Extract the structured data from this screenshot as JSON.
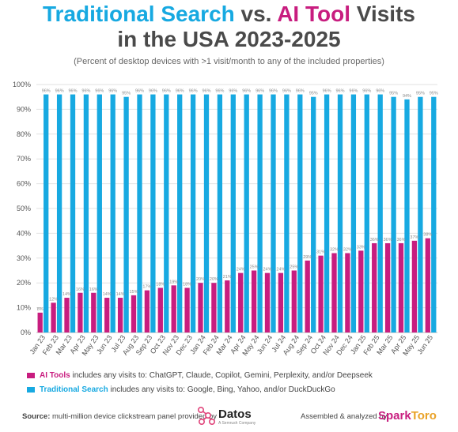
{
  "title": {
    "part1": "Traditional Search",
    "part2": " vs. ",
    "part3": "AI Tool",
    "part4": " Visits",
    "line2": "in the USA 2023-2025"
  },
  "subtitle": "(Percent of desktop devices with >1 visit/month to any of the included properties)",
  "legend": {
    "ai_name": "AI Tools",
    "ai_text": " includes any visits to: ChatGPT, Claude, Copilot, Gemini, Perplexity, and/or Deepseek",
    "search_name": "Traditional Search",
    "search_text": " includes any visits to: Google, Bing, Yahoo, and/or DuckDuckGo"
  },
  "footer": {
    "source_label": "Source:",
    "source_text": " multi-million device clickstream panel provided by",
    "datos": "Datos",
    "datos_sub": "A Semrush Company",
    "assembled": "Assembled & analyzed by",
    "sparktoro_a": "Spark",
    "sparktoro_b": "Toro"
  },
  "colors": {
    "search": "#17a9e1",
    "ai": "#c81d7f",
    "title_gray": "#4a4a4a"
  },
  "chart_data": {
    "type": "bar",
    "ylim": [
      0,
      100
    ],
    "yticks": [
      "0%",
      "10%",
      "20%",
      "30%",
      "40%",
      "50%",
      "60%",
      "70%",
      "80%",
      "90%",
      "100%"
    ],
    "grid": true,
    "legend_position": "bottom",
    "categories": [
      "Jan 23",
      "Feb 23",
      "Mar 23",
      "Apr 23",
      "May 23",
      "Jun 23",
      "Jul 23",
      "Aug 23",
      "Sep 23",
      "Oct 23",
      "Nov 23",
      "Dec 23",
      "Jan 24",
      "Feb 24",
      "Mar 24",
      "Apr 24",
      "May 24",
      "Jun 24",
      "Jul 24",
      "Aug 24",
      "Sep 24",
      "Oct 24",
      "Nov 24",
      "Dec 24",
      "Jan 25",
      "Feb 25",
      "Mar 25",
      "Apr 25",
      "May 25",
      "Jun 25"
    ],
    "series": [
      {
        "name": "AI Tools",
        "color": "#c81d7f",
        "values": [
          8,
          12,
          14,
          16,
          16,
          14,
          14,
          15,
          17,
          18,
          19,
          18,
          20,
          20,
          21,
          24,
          25,
          24,
          24,
          25,
          29,
          31,
          32,
          32,
          33,
          36,
          36,
          36,
          37,
          38
        ],
        "labels": [
          "8%",
          "12%",
          "14%",
          "16%",
          "16%",
          "14%",
          "14%",
          "15%",
          "17%",
          "18%",
          "19%",
          "18%",
          "20%",
          "20%",
          "21%",
          "24%",
          "25%",
          "24%",
          "24%",
          "25%",
          "29%",
          "31%",
          "32%",
          "32%",
          "33%",
          "36%",
          "36%",
          "36%",
          "37%",
          "38%"
        ]
      },
      {
        "name": "Traditional Search",
        "color": "#17a9e1",
        "values": [
          96,
          96,
          96,
          96,
          96,
          96,
          95,
          96,
          96,
          96,
          96,
          96,
          96,
          96,
          96,
          96,
          96,
          96,
          96,
          96,
          95,
          96,
          96,
          96,
          96,
          96,
          95,
          94,
          95,
          95
        ],
        "labels": [
          "96%",
          "96%",
          "96%",
          "96%",
          "96%",
          "96%",
          "95%",
          "96%",
          "96%",
          "96%",
          "96%",
          "96%",
          "96%",
          "96%",
          "96%",
          "96%",
          "96%",
          "96%",
          "96%",
          "96%",
          "95%",
          "96%",
          "96%",
          "96%",
          "96%",
          "96%",
          "95%",
          "94%",
          "95%",
          "95%"
        ]
      }
    ]
  }
}
